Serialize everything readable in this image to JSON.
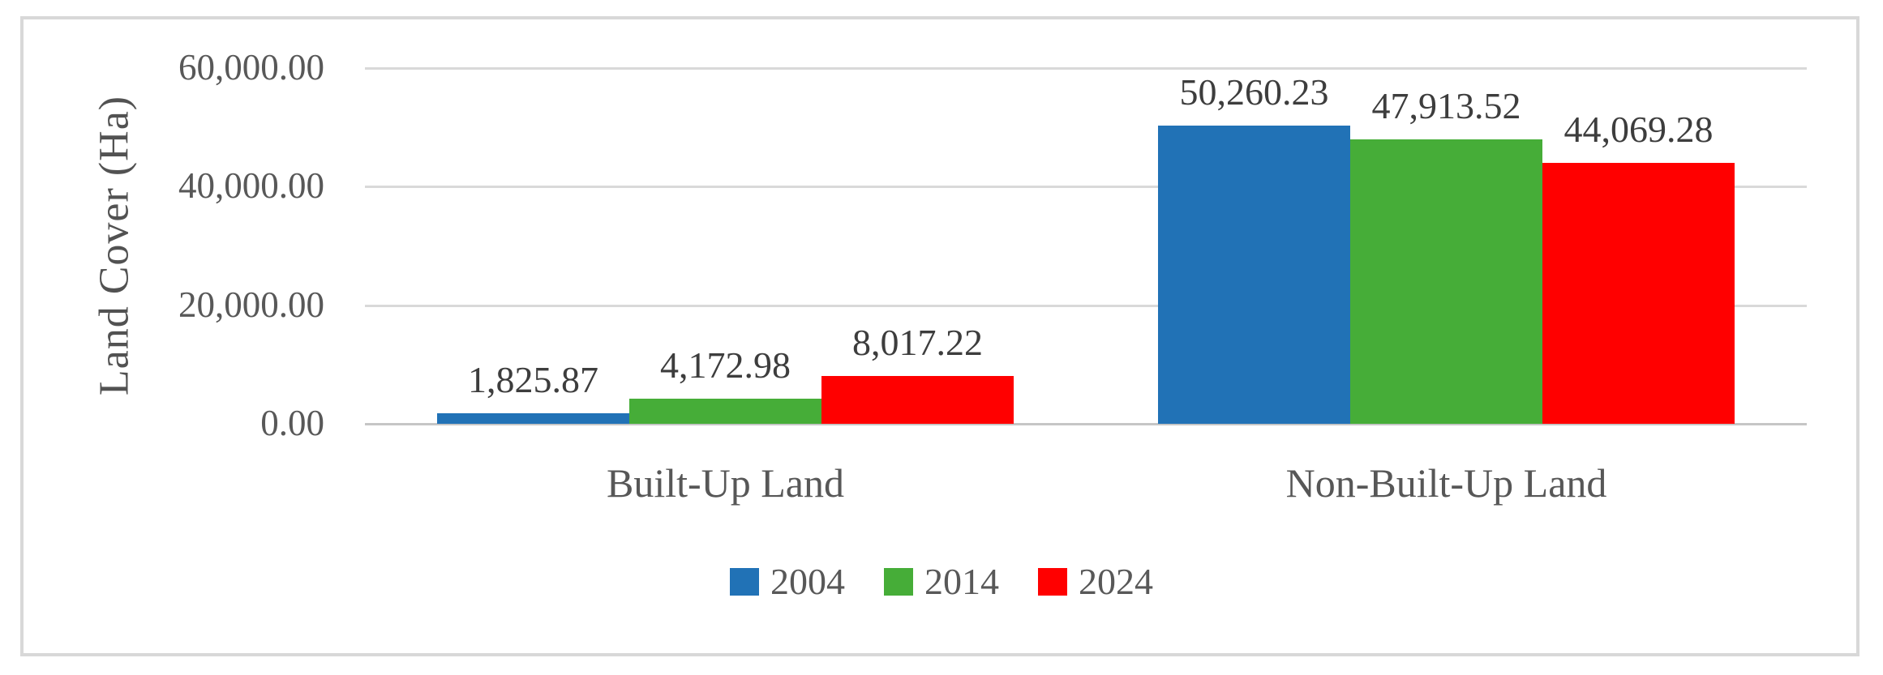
{
  "chart_data": {
    "type": "bar",
    "title": "",
    "ylabel": "Land Cover (Ha)",
    "xlabel": "",
    "categories": [
      "Built-Up Land",
      "Non-Built-Up Land"
    ],
    "series": [
      {
        "name": "2004",
        "color": "#2172b6",
        "values": [
          1825.87,
          50260.23
        ],
        "data_labels": [
          "1,825.87",
          "50,260.23"
        ]
      },
      {
        "name": "2014",
        "color": "#46ad38",
        "values": [
          4172.98,
          47913.52
        ],
        "data_labels": [
          "4,172.98",
          "47,913.52"
        ]
      },
      {
        "name": "2024",
        "color": "#ff0000",
        "values": [
          8017.22,
          44069.28
        ],
        "data_labels": [
          "8,017.22",
          "44,069.28"
        ]
      }
    ],
    "y_axis": {
      "min": 0,
      "max": 60000,
      "ticks": [
        {
          "value": 0,
          "label": "0.00"
        },
        {
          "value": 20000,
          "label": "20,000.00"
        },
        {
          "value": 40000,
          "label": "40,000.00"
        },
        {
          "value": 60000,
          "label": "60,000.00"
        }
      ]
    },
    "grid": "horizontal",
    "legend": {
      "position": "bottom-center",
      "entries": [
        "2004",
        "2014",
        "2024"
      ]
    },
    "colors": {
      "gridline": "#d9d9d9",
      "axis_line": "#c6c6c6",
      "frame_border": "#d8d8d8",
      "tick_text": "#585858",
      "data_label_text": "#3d3d3d"
    }
  }
}
